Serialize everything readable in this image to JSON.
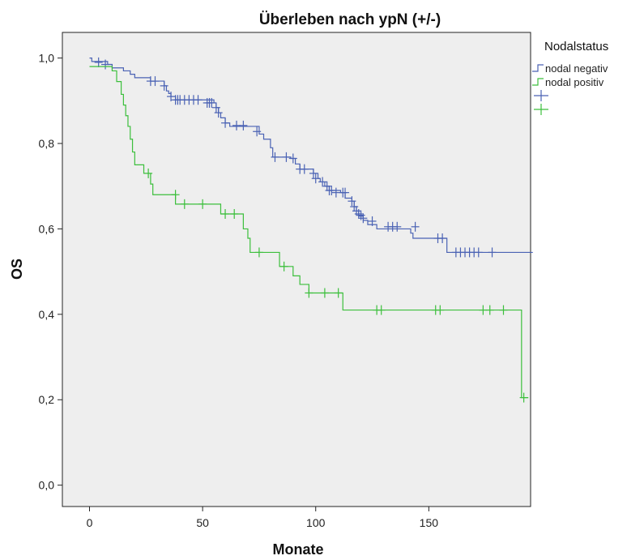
{
  "chart_data": {
    "type": "line",
    "title": "Überleben nach ypN (+/-)",
    "xlabel": "Monate",
    "ylabel": "OS",
    "xlim": [
      -12,
      195
    ],
    "ylim": [
      -0.05,
      1.06
    ],
    "x_ticks": [
      0,
      50,
      100,
      150
    ],
    "x_tick_labels": [
      "0",
      "50",
      "100",
      "150"
    ],
    "y_ticks": [
      0.0,
      0.2,
      0.4,
      0.6,
      0.8,
      1.0
    ],
    "y_tick_labels": [
      "0,0",
      "0,2",
      "0,4",
      "0,6",
      "0,8",
      "1,0"
    ],
    "grid": false,
    "legend": {
      "title": "Nodalstatus",
      "placement": "right",
      "entries": [
        {
          "label": "nodal negativ",
          "kind": "line",
          "color": "#4a62b4"
        },
        {
          "label": "nodal positiv",
          "kind": "line",
          "color": "#3cbf3c"
        },
        {
          "label": "",
          "kind": "censor",
          "color": "#4a62b4"
        },
        {
          "label": "",
          "kind": "censor",
          "color": "#3cbf3c"
        }
      ]
    },
    "series": [
      {
        "name": "nodal negativ",
        "color": "#4a62b4",
        "steps": [
          [
            0,
            1.0
          ],
          [
            1,
            0.992
          ],
          [
            8,
            0.985
          ],
          [
            10,
            0.977
          ],
          [
            15,
            0.97
          ],
          [
            18,
            0.962
          ],
          [
            20,
            0.954
          ],
          [
            27,
            0.946
          ],
          [
            33,
            0.935
          ],
          [
            34,
            0.923
          ],
          [
            35,
            0.917
          ],
          [
            36,
            0.91
          ],
          [
            38,
            0.902
          ],
          [
            55,
            0.895
          ],
          [
            56,
            0.884
          ],
          [
            57,
            0.872
          ],
          [
            58,
            0.86
          ],
          [
            60,
            0.848
          ],
          [
            62,
            0.84
          ],
          [
            75,
            0.822
          ],
          [
            77,
            0.81
          ],
          [
            80,
            0.79
          ],
          [
            81,
            0.768
          ],
          [
            89,
            0.765
          ],
          [
            91,
            0.752
          ],
          [
            93,
            0.74
          ],
          [
            99,
            0.73
          ],
          [
            101,
            0.718
          ],
          [
            102,
            0.71
          ],
          [
            104,
            0.7
          ],
          [
            106,
            0.69
          ],
          [
            111,
            0.685
          ],
          [
            113,
            0.672
          ],
          [
            116,
            0.665
          ],
          [
            117,
            0.652
          ],
          [
            118,
            0.642
          ],
          [
            119,
            0.63
          ],
          [
            121,
            0.62
          ],
          [
            123,
            0.61
          ],
          [
            127,
            0.6
          ],
          [
            142,
            0.59
          ],
          [
            143,
            0.578
          ],
          [
            158,
            0.545
          ],
          [
            196,
            0.545
          ]
        ],
        "censored": [
          [
            4,
            0.99
          ],
          [
            7,
            0.985
          ],
          [
            27,
            0.946
          ],
          [
            29,
            0.946
          ],
          [
            33,
            0.935
          ],
          [
            36,
            0.91
          ],
          [
            38,
            0.902
          ],
          [
            39,
            0.902
          ],
          [
            40,
            0.902
          ],
          [
            42,
            0.902
          ],
          [
            44,
            0.902
          ],
          [
            46,
            0.902
          ],
          [
            48,
            0.902
          ],
          [
            52,
            0.895
          ],
          [
            53,
            0.895
          ],
          [
            54,
            0.895
          ],
          [
            56,
            0.884
          ],
          [
            57,
            0.872
          ],
          [
            60,
            0.848
          ],
          [
            65,
            0.842
          ],
          [
            68,
            0.842
          ],
          [
            74,
            0.828
          ],
          [
            82,
            0.768
          ],
          [
            87,
            0.768
          ],
          [
            90,
            0.765
          ],
          [
            93,
            0.74
          ],
          [
            95,
            0.74
          ],
          [
            99,
            0.73
          ],
          [
            100,
            0.718
          ],
          [
            103,
            0.71
          ],
          [
            105,
            0.7
          ],
          [
            106,
            0.69
          ],
          [
            107,
            0.69
          ],
          [
            109,
            0.685
          ],
          [
            112,
            0.685
          ],
          [
            113,
            0.685
          ],
          [
            116,
            0.665
          ],
          [
            117,
            0.652
          ],
          [
            118,
            0.642
          ],
          [
            119,
            0.635
          ],
          [
            120,
            0.632
          ],
          [
            121,
            0.625
          ],
          [
            125,
            0.618
          ],
          [
            132,
            0.605
          ],
          [
            134,
            0.605
          ],
          [
            136,
            0.605
          ],
          [
            144,
            0.605
          ],
          [
            154,
            0.578
          ],
          [
            156,
            0.578
          ],
          [
            162,
            0.545
          ],
          [
            164,
            0.545
          ],
          [
            166,
            0.545
          ],
          [
            168,
            0.545
          ],
          [
            170,
            0.545
          ],
          [
            172,
            0.545
          ],
          [
            178,
            0.545
          ]
        ]
      },
      {
        "name": "nodal positiv",
        "color": "#3cbf3c",
        "steps": [
          [
            0,
            0.98
          ],
          [
            10,
            0.97
          ],
          [
            12,
            0.945
          ],
          [
            14,
            0.915
          ],
          [
            15,
            0.89
          ],
          [
            16,
            0.865
          ],
          [
            17,
            0.84
          ],
          [
            18,
            0.81
          ],
          [
            19,
            0.78
          ],
          [
            20,
            0.75
          ],
          [
            24,
            0.73
          ],
          [
            27,
            0.705
          ],
          [
            28,
            0.68
          ],
          [
            38,
            0.658
          ],
          [
            58,
            0.635
          ],
          [
            68,
            0.6
          ],
          [
            70,
            0.578
          ],
          [
            71,
            0.545
          ],
          [
            84,
            0.512
          ],
          [
            90,
            0.49
          ],
          [
            93,
            0.47
          ],
          [
            97,
            0.45
          ],
          [
            112,
            0.41
          ],
          [
            191,
            0.41
          ],
          [
            191,
            0.205
          ],
          [
            194,
            0.205
          ]
        ],
        "censored": [
          [
            26,
            0.73
          ],
          [
            38,
            0.68
          ],
          [
            42,
            0.658
          ],
          [
            50,
            0.658
          ],
          [
            60,
            0.635
          ],
          [
            64,
            0.635
          ],
          [
            75,
            0.545
          ],
          [
            86,
            0.512
          ],
          [
            97,
            0.45
          ],
          [
            104,
            0.45
          ],
          [
            110,
            0.45
          ],
          [
            127,
            0.41
          ],
          [
            129,
            0.41
          ],
          [
            153,
            0.41
          ],
          [
            155,
            0.41
          ],
          [
            174,
            0.41
          ],
          [
            177,
            0.41
          ],
          [
            183,
            0.41
          ],
          [
            192,
            0.205
          ]
        ]
      }
    ]
  }
}
